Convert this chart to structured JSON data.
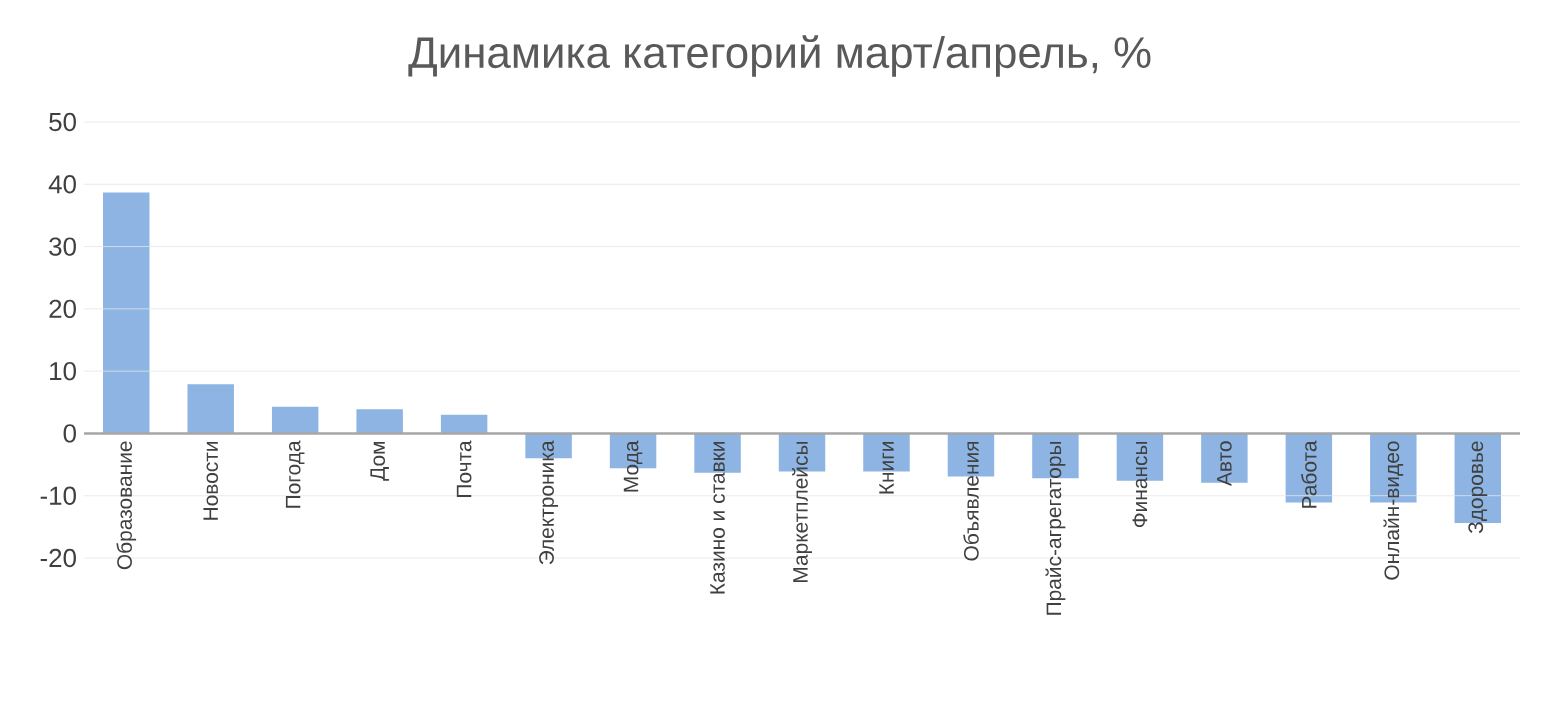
{
  "chart_data": {
    "type": "bar",
    "title": "Динамика категорий март/апрель, %",
    "categories": [
      "Образование",
      "Новости",
      "Погода",
      "Дом",
      "Почта",
      "Электроника",
      "Мода",
      "Казино и ставки",
      "Маркетплейсы",
      "Книги",
      "Объявления",
      "Прайс-агрегаторы",
      "Финансы",
      "Авто",
      "Работа",
      "Онлайн-видео",
      "Здоровье"
    ],
    "values": [
      38.7,
      7.9,
      4.3,
      3.9,
      3.0,
      -4.0,
      -5.6,
      -6.3,
      -6.1,
      -6.1,
      -6.9,
      -7.2,
      -7.6,
      -7.9,
      -11.1,
      -11.1,
      -14.4
    ],
    "color": "#8db4e2",
    "ylim": [
      -20,
      50
    ],
    "yticks": [
      -20,
      -10,
      0,
      10,
      20,
      30,
      40,
      50
    ],
    "grid": "y"
  }
}
